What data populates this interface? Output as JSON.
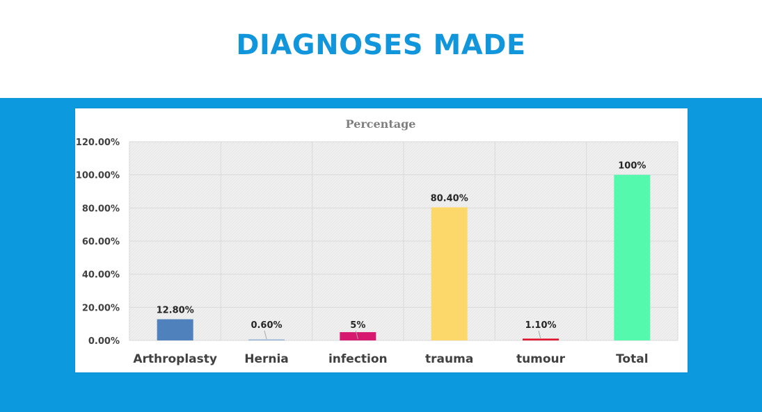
{
  "slide": {
    "title": "DIAGNOSES MADE",
    "band_color": "#0d99dd",
    "title_color": "#1296db"
  },
  "chart_data": {
    "type": "bar",
    "title": "Percentage",
    "xlabel": "",
    "ylabel": "",
    "categories": [
      "Arthroplasty",
      "Hernia",
      "infection",
      "trauma",
      "tumour",
      "Total"
    ],
    "series": [
      {
        "values": [
          12.8,
          0.6,
          5,
          80.4,
          1.1,
          100
        ],
        "labels": [
          "12.80%",
          "0.60%",
          "5%",
          "80.40%",
          "1.10%",
          "100%"
        ],
        "colors": [
          "#4f81bd",
          "#95b3d7",
          "#d6196e",
          "#fcd86b",
          "#e0142c",
          "#55f9ad"
        ]
      }
    ],
    "ylim": [
      0,
      120
    ],
    "yticks": [
      0,
      20,
      40,
      60,
      80,
      100,
      120
    ],
    "ytick_labels": [
      "0.00%",
      "20.00%",
      "40.00%",
      "60.00%",
      "80.00%",
      "100.00%",
      "120.00%"
    ],
    "grid": true,
    "legend": "none",
    "plot_background": "hatched-grey"
  }
}
